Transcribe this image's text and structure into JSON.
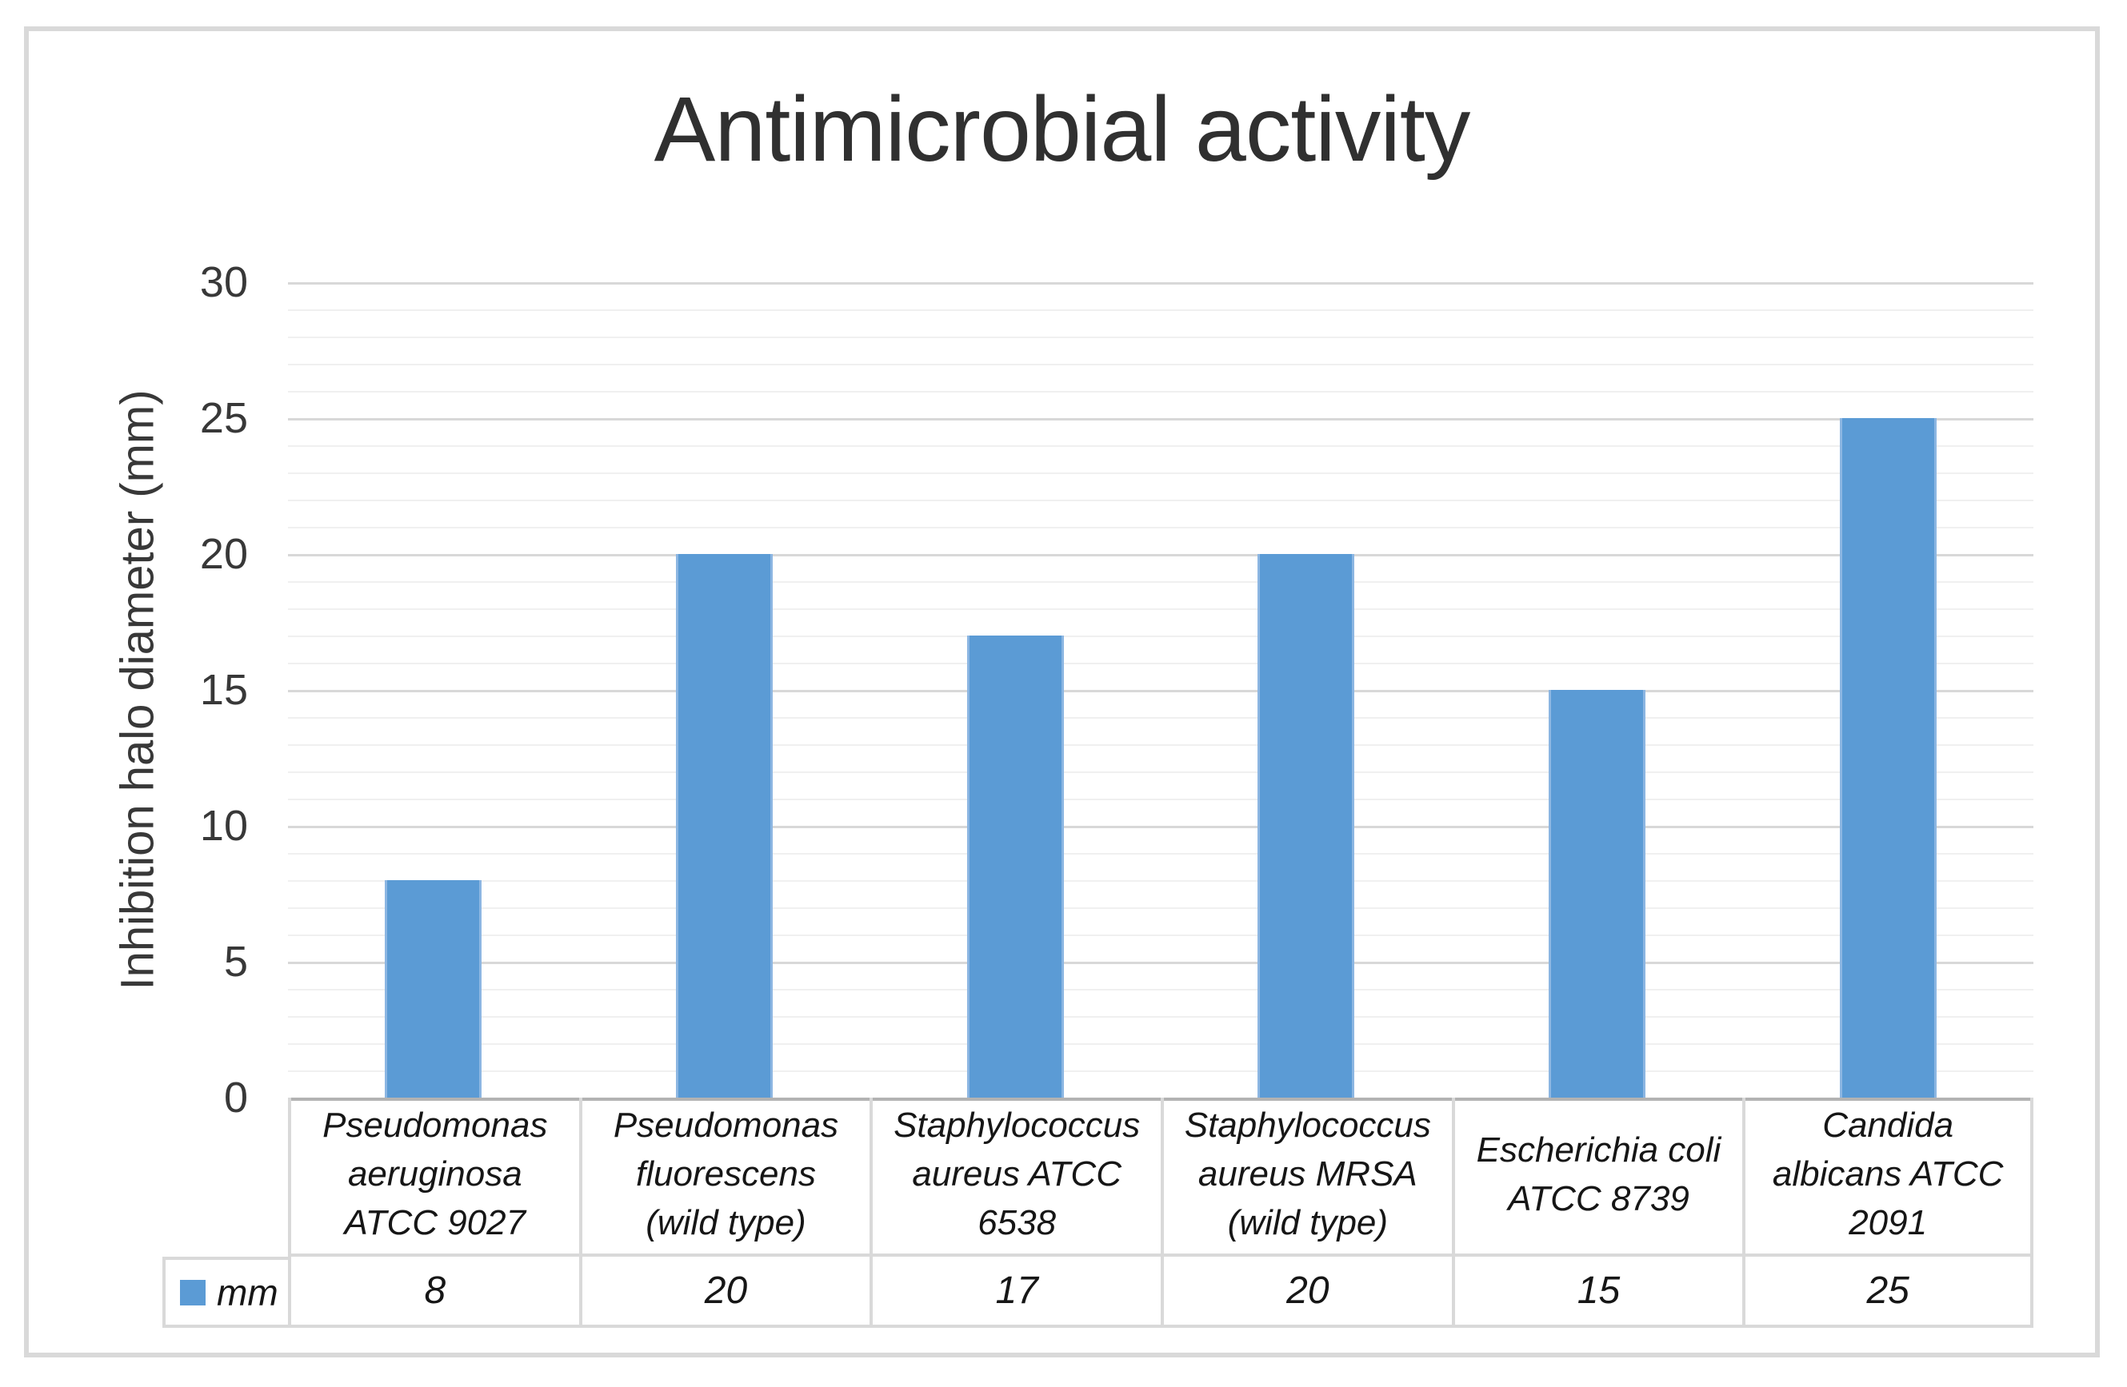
{
  "figure": {
    "title": "Antimicrobial activity"
  },
  "chart_data": {
    "type": "bar",
    "title": "Antimicrobial activity",
    "xlabel": "",
    "ylabel": "Inhibition halo diameter (mm)",
    "ylim": [
      0,
      30
    ],
    "ytick_step_major": 5,
    "ytick_step_minor": 1,
    "grid": true,
    "legend_position": "bottom-left-of-data-table",
    "categories": [
      "Pseudomonas aeruginosa ATCC 9027",
      "Pseudomonas fluorescens (wild type)",
      "Staphylococcus aureus ATCC 6538",
      "Staphylococcus aureus MRSA (wild type)",
      "Escherichia coli ATCC 8739",
      "Candida albicans ATCC 2091"
    ],
    "series": [
      {
        "name": "mm",
        "color": "#5b9bd5",
        "values": [
          8,
          20,
          17,
          20,
          15,
          25
        ]
      }
    ]
  },
  "category_label_lines": [
    [
      "Pseudomonas",
      "aeruginosa",
      "ATCC 9027"
    ],
    [
      "Pseudomonas",
      "fluorescens",
      "(wild type)"
    ],
    [
      "Staphylococcus",
      "aureus ATCC",
      "6538"
    ],
    [
      "Staphylococcus",
      "aureus MRSA",
      "(wild type)"
    ],
    [
      "Escherichia coli",
      "ATCC 8739"
    ],
    [
      "Candida",
      "albicans ATCC",
      "2091"
    ]
  ],
  "colors": {
    "bar_fill": "#5b9bd5",
    "gridline_major": "#d8d8d8",
    "gridline_minor": "#f0f0f0",
    "axis_line": "#b3b3b3",
    "table_border": "#d9d9d9",
    "text": "#161616",
    "figure_border": "#d9d9d9"
  }
}
